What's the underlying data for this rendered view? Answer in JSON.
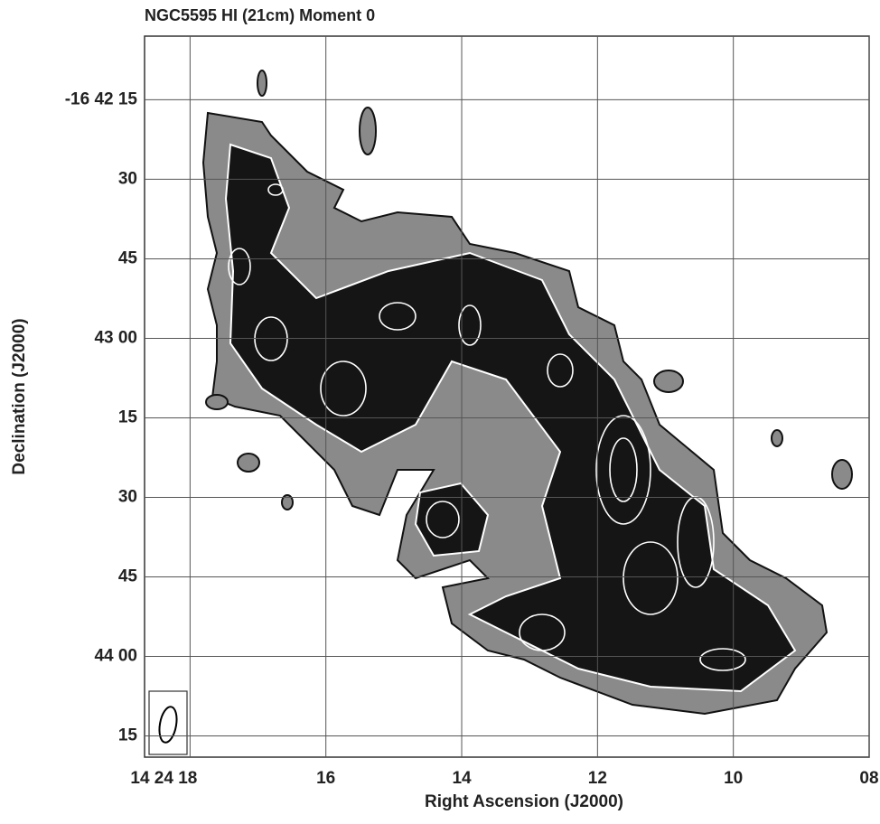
{
  "chart_data": {
    "type": "image",
    "title": "NGC5595 HI (21cm) Moment 0",
    "x_label": "Right Ascension (J2000)",
    "y_label": "Declination (J2000)",
    "xlim": [
      18.67,
      8
    ],
    "xticks": [
      {
        "value": 18,
        "label": "14 24 18"
      },
      16,
      14,
      12,
      10,
      {
        "value": 8,
        "label": "08"
      }
    ],
    "ylim": [
      3,
      139
    ],
    "yticks": [
      {
        "value": 15,
        "label": "-16 42 15"
      },
      30,
      45,
      {
        "value": 60,
        "label": "43 00"
      },
      {
        "value": 75,
        "label": "15"
      },
      {
        "value": 90,
        "label": "30"
      },
      {
        "value": 105,
        "label": "45"
      },
      {
        "value": 120,
        "label": "44 00"
      },
      {
        "value": 135,
        "label": "15"
      }
    ],
    "grid": true
  }
}
